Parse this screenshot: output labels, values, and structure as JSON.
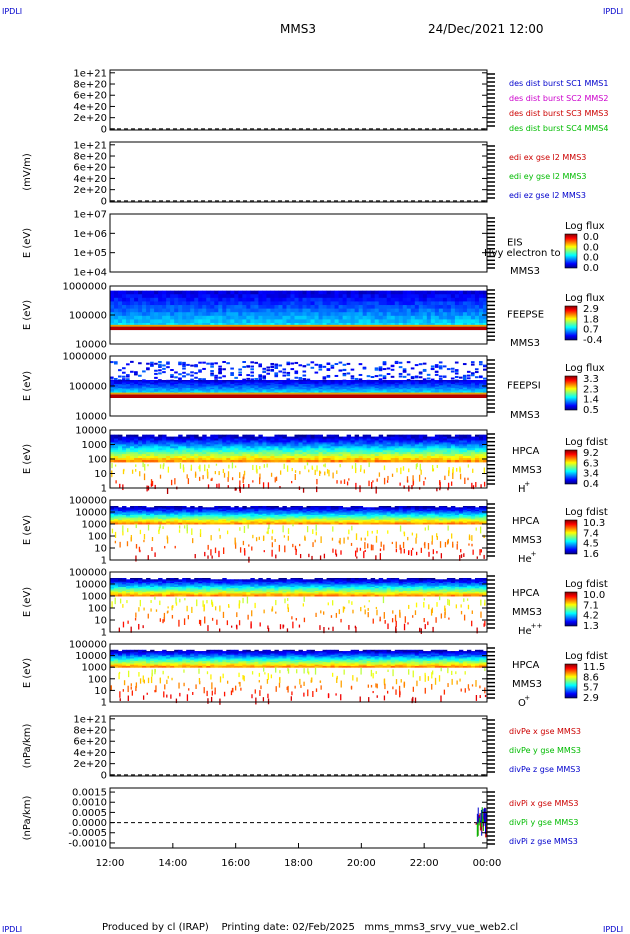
{
  "header": {
    "corner_label": "IPDLI",
    "title": "MMS3",
    "datetime": "24/Dec/2021 12:00"
  },
  "footer": {
    "text": "Produced by cl (IRAP)    Printing date: 02/Feb/2025   mms_mms3_srvy_vue_web2.cl"
  },
  "colors": {
    "red": "#cc0000",
    "green": "#00bb00",
    "blue": "#0000cc",
    "magenta": "#cc00cc"
  },
  "chart_data": [
    {
      "id": "p1",
      "type": "line",
      "ytick_labels": [
        "1e+21",
        "8e+20",
        "6e+20",
        "4e+20",
        "2e+20",
        "0"
      ],
      "yticks": [
        1e+21,
        8e+20,
        6e+20,
        4e+20,
        2e+20,
        0
      ],
      "ylim": [
        -2e+19,
        1.05e+21
      ],
      "ylabel": "",
      "legend": [
        {
          "text": "des dist burst SC1 MMS1",
          "color": "blue"
        },
        {
          "text": "des dist burst SC2 MMS2",
          "color": "magenta"
        },
        {
          "text": "des dist burst SC3 MMS3",
          "color": "red"
        },
        {
          "text": "des dist burst SC4 MMS4",
          "color": "green"
        }
      ]
    },
    {
      "id": "p2",
      "type": "line",
      "ytick_labels": [
        "1e+21",
        "8e+20",
        "6e+20",
        "4e+20",
        "2e+20",
        "0"
      ],
      "yticks": [
        1e+21,
        8e+20,
        6e+20,
        4e+20,
        2e+20,
        0
      ],
      "ylim": [
        -2e+19,
        1.05e+21
      ],
      "ylabel": "(mV/m)",
      "legend": [
        {
          "text": "edi ex gse l2 MMS3",
          "color": "red"
        },
        {
          "text": "edi ey gse l2 MMS3",
          "color": "green"
        },
        {
          "text": "edi ez gse l2 MMS3",
          "color": "blue"
        }
      ]
    },
    {
      "id": "p3",
      "type": "heatmap",
      "ytick_labels": [
        "1e+07",
        "1e+06",
        "1e+05",
        "1e+04"
      ],
      "ylabel": "E (eV)",
      "instrument": [
        "EIS",
        "MMS3"
      ],
      "overlay_text": "Hvy electron to",
      "colorbar": {
        "title": "Log flux",
        "ticks": [
          "0.0",
          "0.0",
          "0.0",
          "0.0"
        ]
      }
    },
    {
      "id": "p4",
      "type": "heatmap",
      "ytick_labels": [
        "1000000",
        "100000",
        "10000"
      ],
      "ylabel": "E (eV)",
      "instrument": [
        "FEEPSE",
        "MMS3"
      ],
      "colorbar": {
        "title": "Log flux",
        "ticks": [
          "2.9",
          "1.8",
          "0.7",
          "-0.4"
        ]
      }
    },
    {
      "id": "p5",
      "type": "heatmap",
      "ytick_labels": [
        "1000000",
        "100000",
        "10000"
      ],
      "ylabel": "E (eV)",
      "instrument": [
        "FEEPSI",
        "MMS3"
      ],
      "colorbar": {
        "title": "Log flux",
        "ticks": [
          "3.3",
          "2.3",
          "1.4",
          "0.5"
        ]
      }
    },
    {
      "id": "p6",
      "type": "heatmap",
      "ytick_labels": [
        "10000",
        "1000",
        "100",
        "10",
        "1"
      ],
      "ylabel": "E (eV)",
      "instrument": [
        "HPCA",
        "MMS3",
        "H",
        "+"
      ],
      "colorbar": {
        "title": "Log fdist",
        "ticks": [
          "9.2",
          "6.3",
          "3.4",
          "0.4"
        ]
      }
    },
    {
      "id": "p7",
      "type": "heatmap",
      "ytick_labels": [
        "100000",
        "10000",
        "1000",
        "100",
        "10",
        "1"
      ],
      "ylabel": "E (eV)",
      "instrument": [
        "HPCA",
        "MMS3",
        "He",
        "+"
      ],
      "colorbar": {
        "title": "Log fdist",
        "ticks": [
          "10.3",
          "7.4",
          "4.5",
          "1.6"
        ]
      }
    },
    {
      "id": "p8",
      "type": "heatmap",
      "ytick_labels": [
        "100000",
        "10000",
        "1000",
        "100",
        "10",
        "1"
      ],
      "ylabel": "E (eV)",
      "instrument": [
        "HPCA",
        "MMS3",
        "He",
        "++"
      ],
      "colorbar": {
        "title": "Log fdist",
        "ticks": [
          "10.0",
          "7.1",
          "4.2",
          "1.3"
        ]
      }
    },
    {
      "id": "p9",
      "type": "heatmap",
      "ytick_labels": [
        "100000",
        "10000",
        "1000",
        "100",
        "10",
        "1"
      ],
      "ylabel": "E (eV)",
      "instrument": [
        "HPCA",
        "MMS3",
        "O",
        "+"
      ],
      "colorbar": {
        "title": "Log fdist",
        "ticks": [
          "11.5",
          "8.6",
          "5.7",
          "2.9"
        ]
      }
    },
    {
      "id": "p10",
      "type": "line",
      "ytick_labels": [
        "1e+21",
        "8e+20",
        "6e+20",
        "4e+20",
        "2e+20",
        "0"
      ],
      "yticks": [
        1e+21,
        8e+20,
        6e+20,
        4e+20,
        2e+20,
        0
      ],
      "ylim": [
        -2e+19,
        1.05e+21
      ],
      "ylabel": "(nPa/km)",
      "legend": [
        {
          "text": "divPe x gse MMS3",
          "color": "red"
        },
        {
          "text": "divPe y gse MMS3",
          "color": "green"
        },
        {
          "text": "divPe z gse MMS3",
          "color": "blue"
        }
      ]
    },
    {
      "id": "p11",
      "type": "line",
      "ytick_labels": [
        "0.0015",
        "0.0010",
        "0.0005",
        "0.0000",
        "-0.0005",
        "-0.0010"
      ],
      "yticks": [
        0.0015,
        0.001,
        0.0005,
        0.0,
        -0.0005,
        -0.001
      ],
      "ylim": [
        -0.00125,
        0.0017
      ],
      "ylabel": "(nPa/km)",
      "legend": [
        {
          "text": "divPi x gse MMS3",
          "color": "red"
        },
        {
          "text": "divPi y gse MMS3",
          "color": "green"
        },
        {
          "text": "divPi z gse MMS3",
          "color": "blue"
        }
      ]
    }
  ],
  "xaxis": {
    "tick_labels": [
      "12:00",
      "14:00",
      "16:00",
      "18:00",
      "20:00",
      "22:00",
      "00:00"
    ]
  }
}
